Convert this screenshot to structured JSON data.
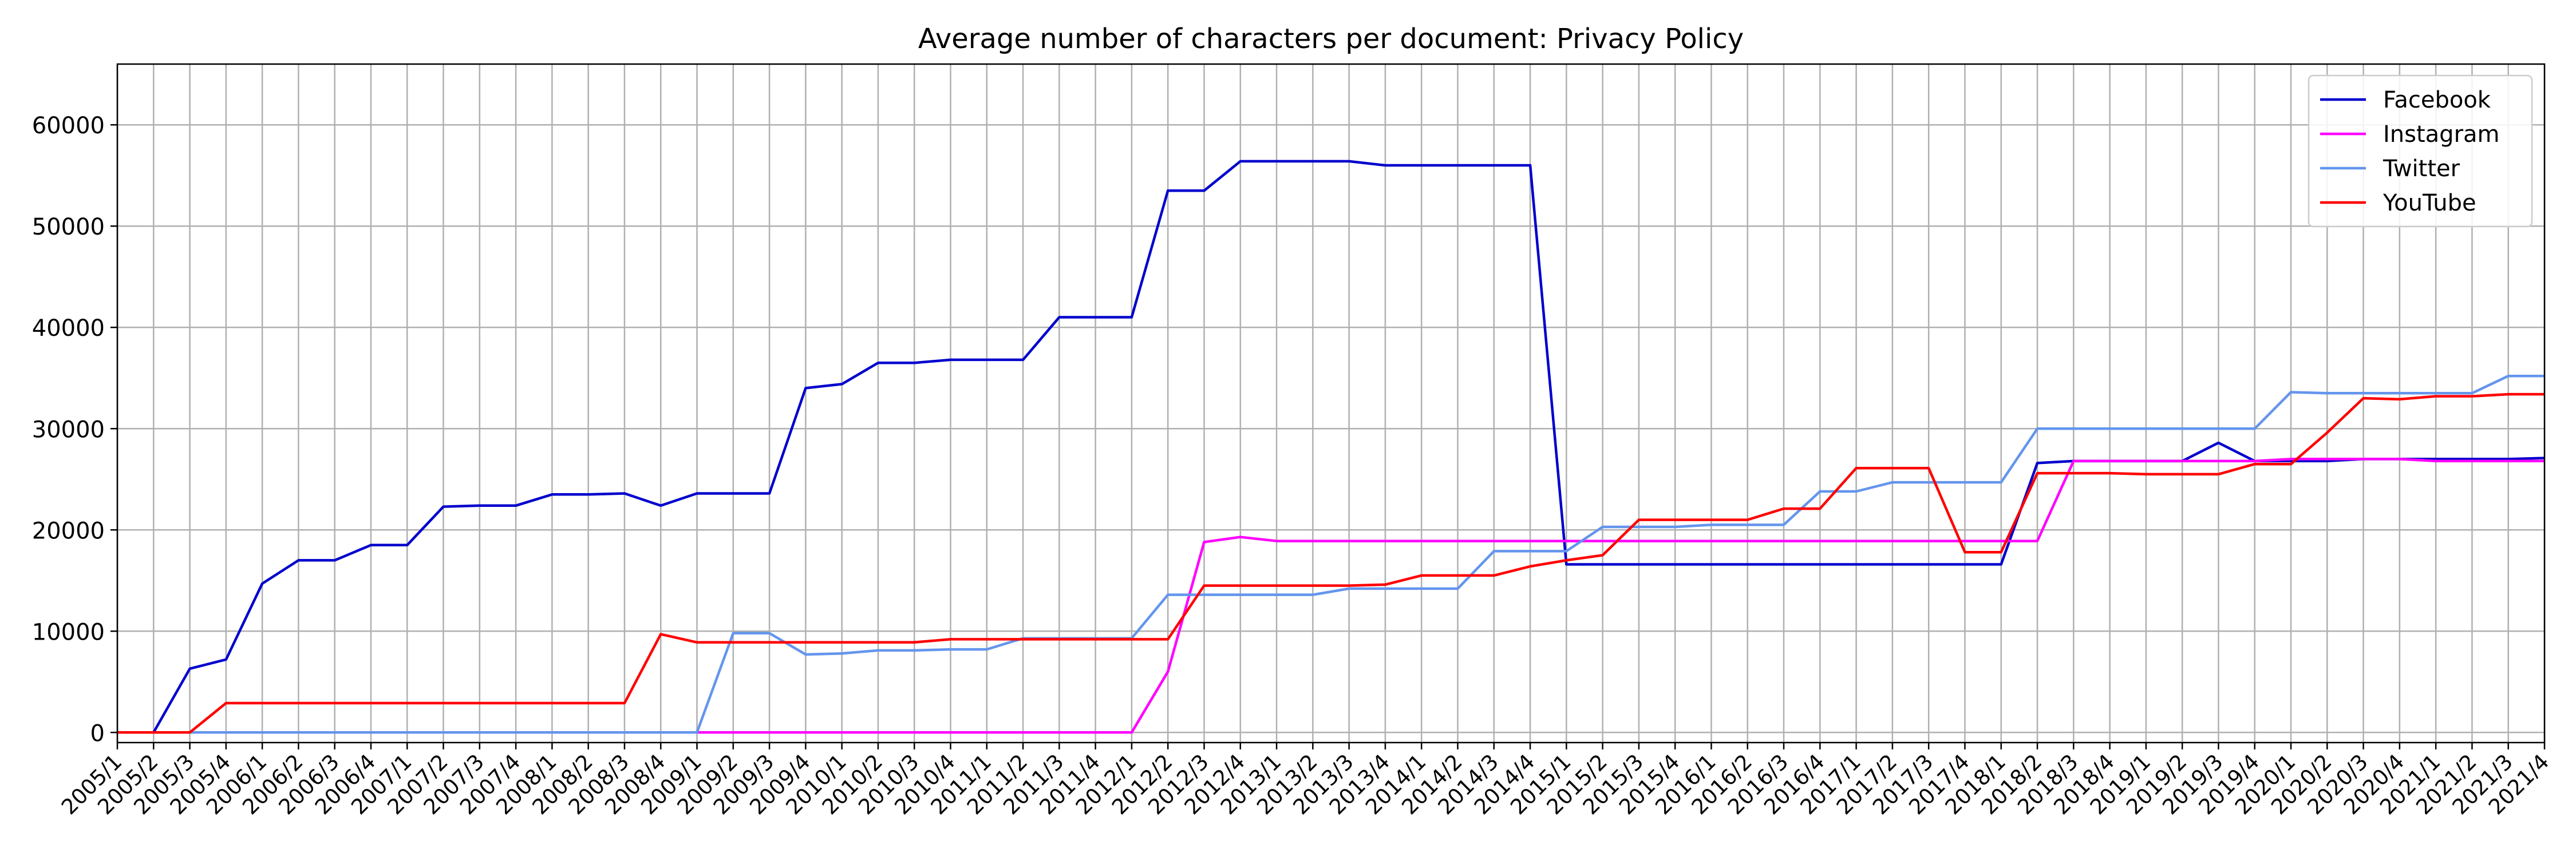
{
  "chart_data": {
    "type": "line",
    "title": "Average number of characters per document: Privacy Policy",
    "xlabel": "",
    "ylabel": "",
    "ylim": [
      -1000,
      66000
    ],
    "yticks": [
      0,
      10000,
      20000,
      30000,
      40000,
      50000,
      60000
    ],
    "grid": true,
    "legend_position": "top-right",
    "x": [
      "2005/1",
      "2005/2",
      "2005/3",
      "2005/4",
      "2006/1",
      "2006/2",
      "2006/3",
      "2006/4",
      "2007/1",
      "2007/2",
      "2007/3",
      "2007/4",
      "2008/1",
      "2008/2",
      "2008/3",
      "2008/4",
      "2009/1",
      "2009/2",
      "2009/3",
      "2009/4",
      "2010/1",
      "2010/2",
      "2010/3",
      "2010/4",
      "2011/1",
      "2011/2",
      "2011/3",
      "2011/4",
      "2012/1",
      "2012/2",
      "2012/3",
      "2012/4",
      "2013/1",
      "2013/2",
      "2013/3",
      "2013/4",
      "2014/1",
      "2014/2",
      "2014/3",
      "2014/4",
      "2015/1",
      "2015/2",
      "2015/3",
      "2015/4",
      "2016/1",
      "2016/2",
      "2016/3",
      "2016/4",
      "2017/1",
      "2017/2",
      "2017/3",
      "2017/4",
      "2018/1",
      "2018/2",
      "2018/3",
      "2018/4",
      "2019/1",
      "2019/2",
      "2019/3",
      "2019/4",
      "2020/1",
      "2020/2",
      "2020/3",
      "2020/4",
      "2021/1",
      "2021/2",
      "2021/3",
      "2021/4"
    ],
    "series": [
      {
        "name": "Facebook",
        "color": "#0000cd",
        "values": [
          0,
          0,
          6300,
          7200,
          14700,
          17000,
          17000,
          18500,
          18500,
          22300,
          22400,
          22400,
          23500,
          23500,
          23600,
          22400,
          23600,
          23600,
          23600,
          34000,
          34400,
          36500,
          36500,
          36800,
          36800,
          36800,
          41000,
          41000,
          41000,
          53500,
          53500,
          56400,
          56400,
          56400,
          56400,
          56000,
          56000,
          56000,
          56000,
          56000,
          16600,
          16600,
          16600,
          16600,
          16600,
          16600,
          16600,
          16600,
          16600,
          16600,
          16600,
          16600,
          16600,
          26600,
          26800,
          26800,
          26800,
          26800,
          28600,
          26800,
          26800,
          26800,
          27000,
          27000,
          27000,
          27000,
          27000,
          27100
        ]
      },
      {
        "name": "Instagram",
        "color": "#ff00ff",
        "values": [
          0,
          0,
          0,
          0,
          0,
          0,
          0,
          0,
          0,
          0,
          0,
          0,
          0,
          0,
          0,
          0,
          0,
          0,
          0,
          0,
          0,
          0,
          0,
          0,
          0,
          0,
          0,
          0,
          0,
          6000,
          18800,
          19300,
          18900,
          18900,
          18900,
          18900,
          18900,
          18900,
          18900,
          18900,
          18900,
          18900,
          18900,
          18900,
          18900,
          18900,
          18900,
          18900,
          18900,
          18900,
          18900,
          18900,
          18900,
          18900,
          26800,
          26800,
          26800,
          26800,
          26800,
          26800,
          27000,
          27000,
          27000,
          27000,
          26800,
          26800,
          26800,
          26800
        ]
      },
      {
        "name": "Twitter",
        "color": "#6495ed",
        "values": [
          0,
          0,
          0,
          0,
          0,
          0,
          0,
          0,
          0,
          0,
          0,
          0,
          0,
          0,
          0,
          0,
          0,
          9800,
          9800,
          7700,
          7800,
          8100,
          8100,
          8200,
          8200,
          9300,
          9300,
          9300,
          9300,
          13600,
          13600,
          13600,
          13600,
          13600,
          14200,
          14200,
          14200,
          14200,
          17900,
          17900,
          17900,
          20300,
          20300,
          20300,
          20500,
          20500,
          20500,
          23800,
          23800,
          24700,
          24700,
          24700,
          24700,
          30000,
          30000,
          30000,
          30000,
          30000,
          30000,
          30000,
          33600,
          33500,
          33500,
          33500,
          33500,
          33500,
          35200,
          35200
        ]
      },
      {
        "name": "YouTube",
        "color": "#ff0000",
        "values": [
          0,
          0,
          0,
          2900,
          2900,
          2900,
          2900,
          2900,
          2900,
          2900,
          2900,
          2900,
          2900,
          2900,
          2900,
          9700,
          8900,
          8900,
          8900,
          8900,
          8900,
          8900,
          8900,
          9200,
          9200,
          9200,
          9200,
          9200,
          9200,
          9200,
          14500,
          14500,
          14500,
          14500,
          14500,
          14600,
          15500,
          15500,
          15500,
          16400,
          17000,
          17500,
          21000,
          21000,
          21000,
          21000,
          22100,
          22100,
          26100,
          26100,
          26100,
          17800,
          17800,
          25600,
          25600,
          25600,
          25500,
          25500,
          25500,
          26500,
          26500,
          29600,
          33000,
          32900,
          33200,
          33200,
          33400,
          33400
        ]
      }
    ]
  }
}
